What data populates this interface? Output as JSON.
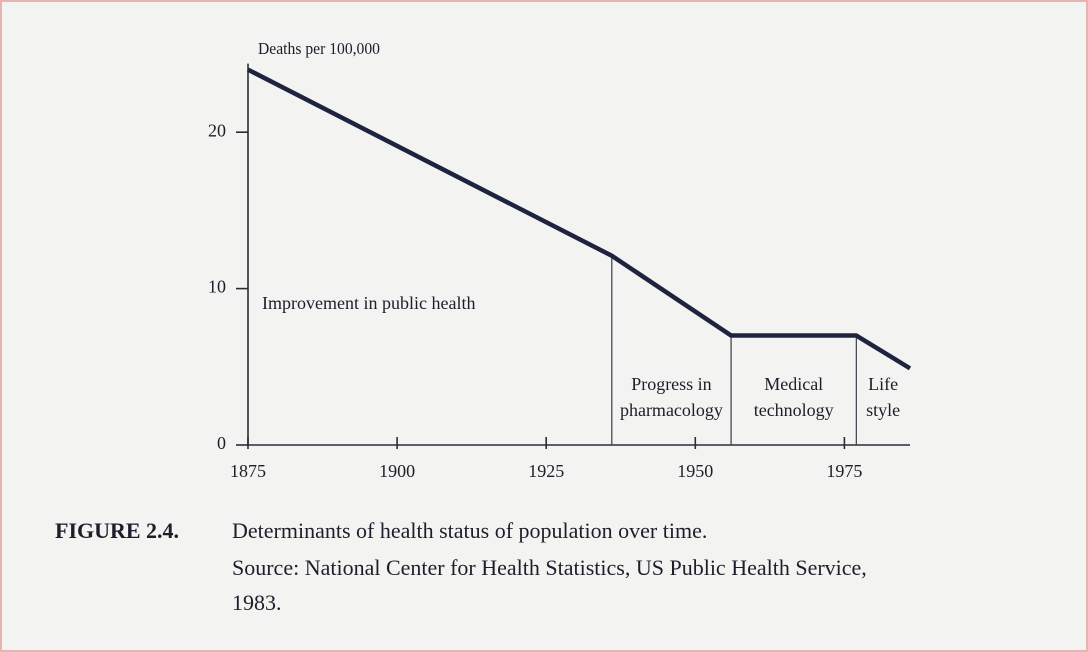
{
  "chart_data": {
    "type": "line",
    "y_axis_label": "Deaths per 100,000",
    "x": [
      1875,
      1936,
      1956,
      1977,
      1986
    ],
    "series": [
      {
        "color": "#1e2440",
        "values": [
          24,
          12.1,
          7,
          7,
          4.9
        ]
      }
    ],
    "xlim": [
      1875,
      1986
    ],
    "ylim": [
      0,
      25
    ],
    "xticks": [
      1875,
      1900,
      1925,
      1950,
      1975
    ],
    "yticks": [
      0,
      10,
      20
    ],
    "dividers": [
      1936,
      1956,
      1977
    ],
    "regions": [
      {
        "lines": [
          "Improvement in public health"
        ]
      },
      {
        "lines": [
          "Progress in",
          "pharmacology"
        ]
      },
      {
        "lines": [
          "Medical",
          "technology"
        ]
      },
      {
        "lines": [
          "Life",
          "style"
        ]
      }
    ],
    "caption": {
      "label": "FIGURE 2.4.",
      "lines": [
        "Determinants of health status of population over time.",
        "Source: National Center for Health Statistics, US Public Health Service,",
        "1983."
      ]
    }
  }
}
